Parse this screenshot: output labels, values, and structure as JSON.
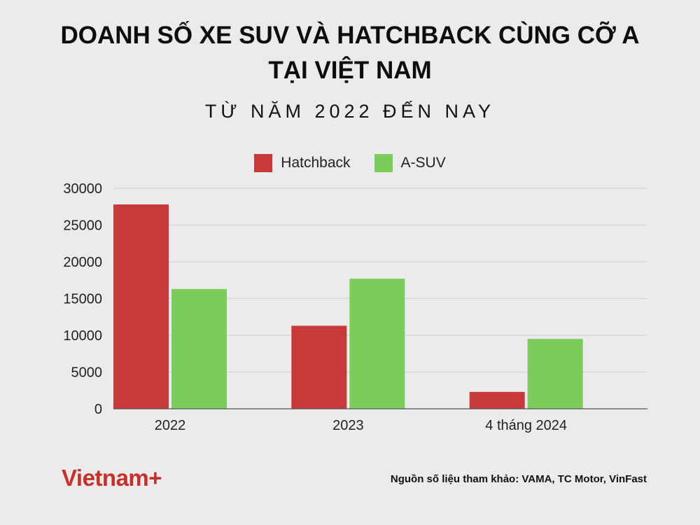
{
  "title_line1": "DOANH SỐ XE SUV VÀ HATCHBACK CÙNG CỠ A",
  "title_line2": "TẠI VIỆT NAM",
  "subtitle": "TỪ NĂM 2022 ĐẾN NAY",
  "logo_text": "Vietnam+",
  "source_note": "Nguồn số liệu tham khảo: VAMA, TC Motor, VinFast",
  "colors": {
    "hatchback": "#c8393a",
    "asuv": "#7ccc5c",
    "grid": "#cfcfcf",
    "axis": "#555555"
  },
  "chart_data": {
    "type": "bar",
    "title": "DOANH SỐ XE SUV VÀ HATCHBACK CÙNG CỠ A TẠI VIỆT NAM",
    "subtitle": "TỪ NĂM 2022 ĐẾN NAY",
    "categories": [
      "2022",
      "2023",
      "4 tháng 2024"
    ],
    "series": [
      {
        "name": "Hatchback",
        "values": [
          27800,
          11300,
          2300
        ]
      },
      {
        "name": "A-SUV",
        "values": [
          16300,
          17700,
          9500
        ]
      }
    ],
    "ylim": [
      0,
      30000
    ],
    "yticks": [
      0,
      5000,
      10000,
      15000,
      20000,
      25000,
      30000
    ],
    "grid": true,
    "legend": "top-center"
  }
}
